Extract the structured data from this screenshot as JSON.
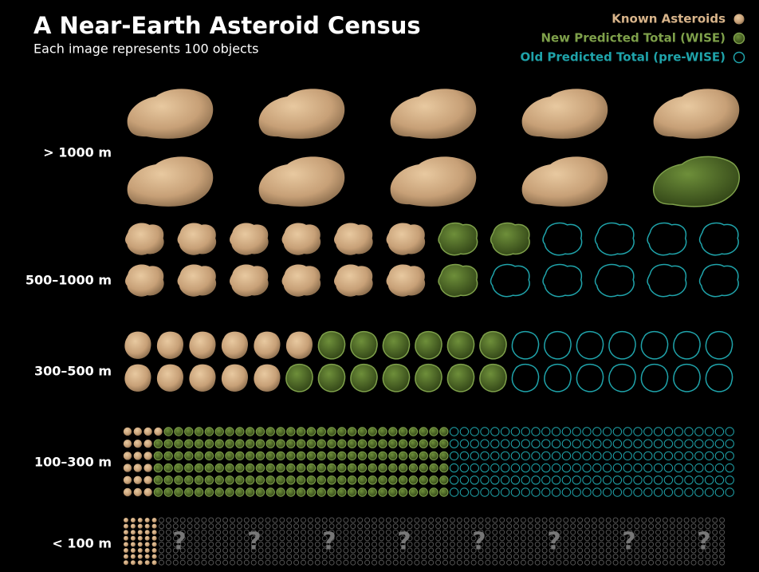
{
  "title": "A Near-Earth Asteroid Census",
  "subtitle": "Each image represents 100 objects",
  "legend": [
    {
      "label": "Known Asteroids",
      "color": "#d8b48a"
    },
    {
      "label": "New Predicted Total (WISE)",
      "color": "#7ea04a"
    },
    {
      "label": "Old Predicted Total (pre-WISE)",
      "color": "#1fa3aa"
    }
  ],
  "rows": [
    {
      "label": "> 1000 m",
      "known": 9,
      "wise": 1,
      "prewise": 0
    },
    {
      "label": "500–1000 m",
      "known": 12,
      "wise": 3,
      "prewise": 9
    },
    {
      "label": "300–500 m",
      "known": 11,
      "wise": 13,
      "prewise": 14
    },
    {
      "label": "100–300 m",
      "known": 19,
      "wise": 173,
      "prewise": 168
    },
    {
      "label": "< 100 m",
      "known": 40,
      "unknown": 640,
      "marks": [
        "?",
        "?",
        "?",
        "?",
        "?",
        "?",
        "?",
        "?"
      ]
    }
  ]
}
